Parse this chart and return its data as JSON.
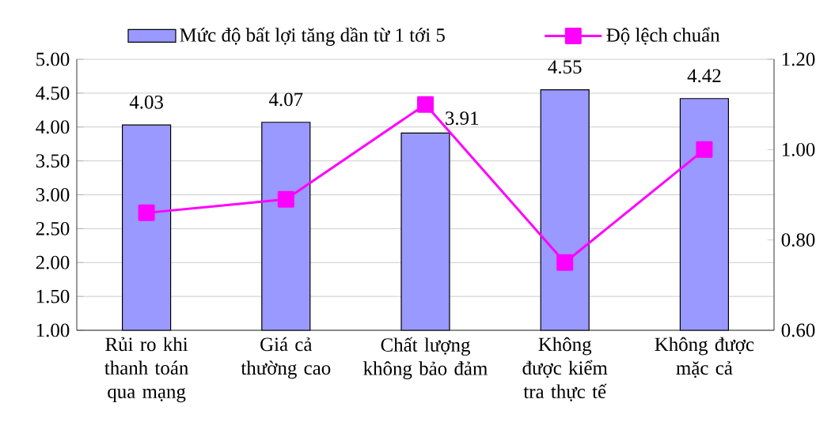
{
  "chart_data": {
    "type": "bar",
    "categories": [
      "Rủi ro khi thanh toán qua mạng",
      "Giá cả thường cao",
      "Chất lượng không bảo đảm",
      "Không được kiểm tra thực tế",
      "Không được mặc cả"
    ],
    "series": [
      {
        "name": "Mức độ bất lợi tăng dần từ 1 tới 5",
        "color": "#9999ff",
        "values": [
          4.03,
          4.07,
          3.91,
          4.55,
          4.42
        ]
      },
      {
        "name": "Độ lệch chuẩn",
        "type": "line",
        "axis": "y2",
        "color": "#ff00ff",
        "marker": "square",
        "values": [
          0.86,
          0.89,
          1.1,
          0.75,
          1.0
        ]
      }
    ],
    "ylim": [
      1,
      5
    ],
    "yticks": [
      {
        "value": 1,
        "label": "1.00"
      },
      {
        "value": 1.5,
        "label": "1.50"
      },
      {
        "value": 2,
        "label": "2.00"
      },
      {
        "value": 2.5,
        "label": "2.50"
      },
      {
        "value": 3,
        "label": "3.00"
      },
      {
        "value": 3.5,
        "label": "3.50"
      },
      {
        "value": 4,
        "label": "4.00"
      },
      {
        "value": 4.5,
        "label": "4.50"
      },
      {
        "value": 5,
        "label": "5.00"
      }
    ],
    "y2lim": [
      0.6,
      1.2
    ],
    "y2ticks": [
      {
        "value": 0.6,
        "label": "0.60"
      },
      {
        "value": 0.8,
        "label": "0.80"
      },
      {
        "value": 1.0,
        "label": "1.00"
      },
      {
        "value": 1.2,
        "label": "1.20"
      }
    ],
    "value_labels": [
      "4.03",
      "4.07",
      "3.91",
      "4.55",
      "4.42"
    ],
    "grid": "y",
    "legend": "top"
  }
}
